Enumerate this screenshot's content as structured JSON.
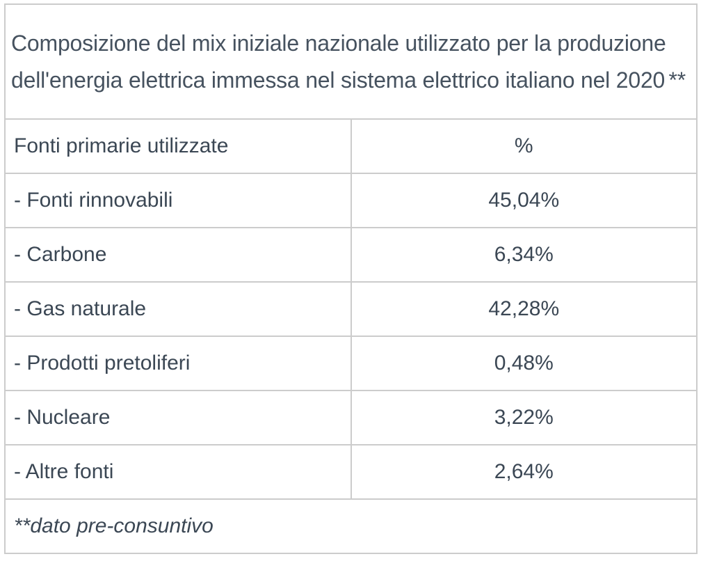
{
  "table": {
    "title": "Composizione del mix iniziale nazionale utilizzato per la produzione dell'energia elettrica immessa nel sistema elettrico italiano nel 2020",
    "title_marker": "**",
    "header": {
      "source_label": "Fonti primarie utilizzate",
      "value_label": "%"
    },
    "rows": [
      {
        "label": "- Fonti rinnovabili",
        "value": "45,04%"
      },
      {
        "label": "- Carbone",
        "value": "6,34%"
      },
      {
        "label": "- Gas naturale",
        "value": "42,28%"
      },
      {
        "label": "- Prodotti pretoliferi",
        "value": "0,48%"
      },
      {
        "label": "- Nucleare",
        "value": "3,22%"
      },
      {
        "label": "- Altre fonti",
        "value": "2,64%"
      }
    ],
    "footnote": "**dato pre-consuntivo"
  },
  "colors": {
    "text": "#3b4754",
    "border": "#cccccc"
  }
}
